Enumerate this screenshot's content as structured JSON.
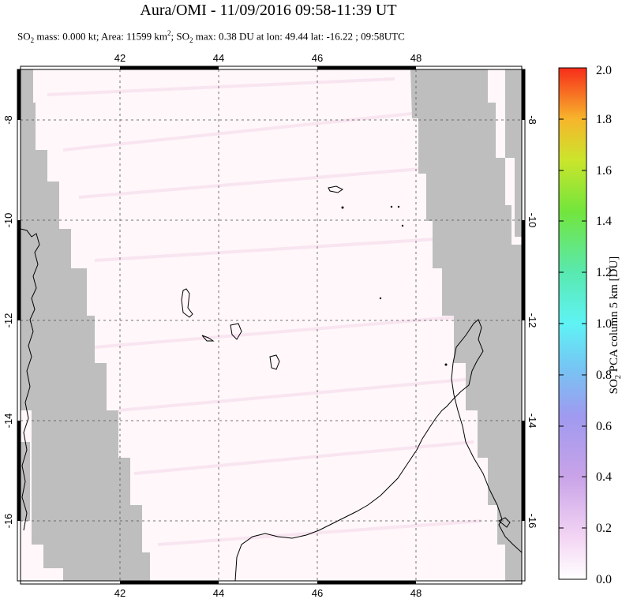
{
  "title": "Aura/OMI - 11/09/2016 09:58-11:39 UT",
  "subtitle": {
    "p1": "SO",
    "s1": "2",
    "p2": " mass: 0.000 kt; Area: 11599 km",
    "s2": "2",
    "p3": "; SO",
    "s3": "2",
    "p4": " max: 0.38 DU at lon: 49.44 lat: -16.22 ; 09:58UTC"
  },
  "map": {
    "lon_ticks": [
      "42",
      "44",
      "46",
      "48"
    ],
    "lat_ticks": [
      "-8",
      "-10",
      "-12",
      "-14",
      "-16"
    ],
    "lon_range": [
      40,
      50
    ],
    "lat_range": [
      -7,
      -17
    ],
    "no_data_color": "#bebebe",
    "background_color": "#fff7f9"
  },
  "colorbar": {
    "title_main": "SO",
    "title_sub": "2",
    "title_rest": " PCA column 5 km [DU]",
    "ticks": [
      "0.0",
      "0.2",
      "0.4",
      "0.6",
      "0.8",
      "1.0",
      "1.2",
      "1.4",
      "1.6",
      "1.8",
      "2.0"
    ],
    "range": [
      0,
      2
    ]
  }
}
